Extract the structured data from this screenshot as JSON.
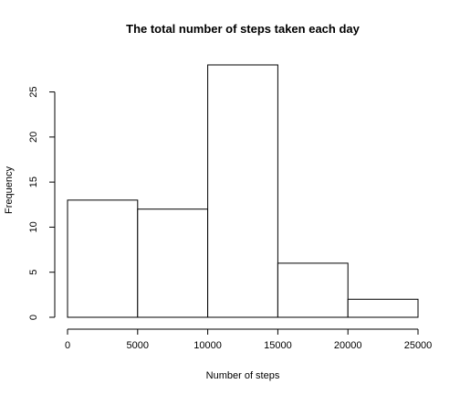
{
  "chart_data": {
    "type": "bar",
    "title": "The total number of steps taken each day",
    "xlabel": "Number of steps",
    "ylabel": "Frequency",
    "bins": [
      {
        "from": 0,
        "to": 5000,
        "count": 13
      },
      {
        "from": 5000,
        "to": 10000,
        "count": 12
      },
      {
        "from": 10000,
        "to": 15000,
        "count": 28
      },
      {
        "from": 15000,
        "to": 20000,
        "count": 6
      },
      {
        "from": 20000,
        "to": 25000,
        "count": 2
      }
    ],
    "xlim": [
      0,
      25000
    ],
    "ylim": [
      0,
      28
    ],
    "x_ticks": [
      "0",
      "5000",
      "10000",
      "15000",
      "20000",
      "25000"
    ],
    "y_ticks": [
      "0",
      "5",
      "10",
      "15",
      "20",
      "25"
    ],
    "grid": false,
    "colors": {
      "bar_fill": "#ffffff",
      "bar_stroke": "#000000"
    }
  }
}
